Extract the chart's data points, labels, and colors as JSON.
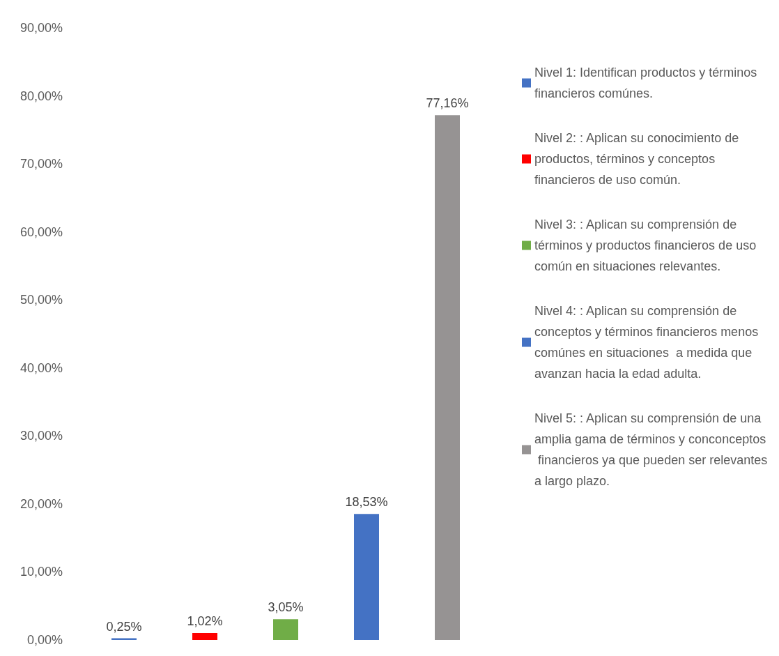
{
  "chart_data": {
    "type": "bar",
    "categories": [
      null,
      null,
      null,
      null,
      null
    ],
    "stacked": true,
    "series": [
      {
        "name": "Nivel 1: Identifican productos y términos financieros comúnes.",
        "color": "#4472c4",
        "values": [
          0.25,
          null,
          null,
          null,
          null
        ],
        "value_labels": [
          "0,25%",
          null,
          null,
          null,
          null
        ]
      },
      {
        "name": "Nivel 2: : Aplican su conocimiento de productos, términos y conceptos financieros de uso común.",
        "color": "#ff0000",
        "values": [
          null,
          1.02,
          null,
          null,
          null
        ],
        "value_labels": [
          null,
          "1,02%",
          null,
          null,
          null
        ]
      },
      {
        "name": "Nivel 3: : Aplican su comprensión de términos y productos financieros de uso común en situaciones relevantes.",
        "color": "#70ad47",
        "values": [
          null,
          null,
          3.05,
          null,
          null
        ],
        "value_labels": [
          null,
          null,
          "3,05%",
          null,
          null
        ]
      },
      {
        "name": "Nivel 4: : Aplican su comprensión de conceptos y términos financieros menos comúnes en situaciones  a medida que avanzan hacia la edad adulta.",
        "color": "#4472c4",
        "values": [
          null,
          null,
          null,
          18.53,
          null
        ],
        "value_labels": [
          null,
          null,
          null,
          "18,53%",
          null
        ]
      },
      {
        "name": "Nivel 5: : Aplican su comprensión de una amplia gama de términos y conconceptos financieros ya que pueden ser relevantes a largo plazo.",
        "color": "#969393",
        "values": [
          null,
          null,
          null,
          null,
          77.16
        ],
        "value_labels": [
          null,
          null,
          null,
          null,
          "77,16%"
        ]
      }
    ],
    "ylim": [
      0,
      90
    ],
    "yticks": [
      {
        "value": 0,
        "label": "0,00%"
      },
      {
        "value": 10,
        "label": "10,00%"
      },
      {
        "value": 20,
        "label": "20,00%"
      },
      {
        "value": 30,
        "label": "30,00%"
      },
      {
        "value": 40,
        "label": "40,00%"
      },
      {
        "value": 50,
        "label": "50,00%"
      },
      {
        "value": 60,
        "label": "60,00%"
      },
      {
        "value": 70,
        "label": "70,00%"
      },
      {
        "value": 80,
        "label": "80,00%"
      },
      {
        "value": 90,
        "label": "90,00%"
      }
    ],
    "grid": false,
    "legend": "right"
  }
}
